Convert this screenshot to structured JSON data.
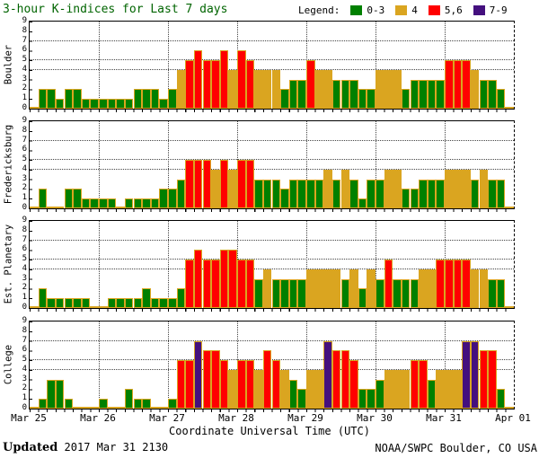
{
  "title": "3-hour K-indices for Last 7 days",
  "title_color": "#006400",
  "legend": {
    "label": "Legend:",
    "items": [
      {
        "label": "0-3",
        "color": "#008000"
      },
      {
        "label": "4",
        "color": "#DAA520"
      },
      {
        "label": "5,6",
        "color": "#FF0000"
      },
      {
        "label": "7-9",
        "color": "#44107E"
      }
    ]
  },
  "footer": {
    "updated_label": "Updated",
    "updated_value": "2017 Mar 31 2130",
    "source": "NOAA/SWPC Boulder, CO USA"
  },
  "chart_data": {
    "type": "bar",
    "title": "3-hour K-indices for Last 7 days",
    "xlabel": "Coordinate Universal Time (UTC)",
    "ylabel_panels": [
      "Boulder",
      "Fredericksburg",
      "Est. Planetary",
      "College"
    ],
    "x_tick_labels": [
      "Mar 25",
      "Mar 26",
      "Mar 27",
      "Mar 28",
      "Mar 29",
      "Mar 30",
      "Mar 31",
      "Apr 01"
    ],
    "bars_per_day": 8,
    "days": 7,
    "ylim": [
      0,
      9
    ],
    "y_ticks": [
      0,
      1,
      2,
      3,
      4,
      5,
      6,
      7,
      8,
      9
    ],
    "grid_y_values": [
      4,
      5,
      7
    ],
    "grid_x": "day-boundaries",
    "legend_position": "top-right",
    "k_color_rule": "0-3 green, 4 yellow, 5-6 red, 7-9 purple",
    "k_colors": {
      "0-3": "#008000",
      "4": "#DAA520",
      "5,6": "#FF0000",
      "7-9": "#44107E"
    },
    "bar_outline": "#DAA520",
    "series": [
      {
        "name": "Boulder",
        "values": [
          0,
          2,
          2,
          1,
          2,
          2,
          1,
          1,
          1,
          1,
          1,
          1,
          2,
          2,
          2,
          1,
          2,
          4,
          5,
          6,
          5,
          5,
          6,
          4,
          6,
          5,
          4,
          4,
          4,
          2,
          3,
          3,
          5,
          4,
          4,
          3,
          3,
          3,
          2,
          2,
          4,
          4,
          4,
          2,
          3,
          3,
          3,
          3,
          5,
          5,
          5,
          4,
          3,
          3,
          2,
          0
        ]
      },
      {
        "name": "Fredericksburg",
        "values": [
          0,
          2,
          0,
          0,
          2,
          2,
          1,
          1,
          1,
          1,
          0,
          1,
          1,
          1,
          1,
          2,
          2,
          3,
          5,
          5,
          5,
          4,
          5,
          4,
          5,
          5,
          3,
          3,
          3,
          2,
          3,
          3,
          3,
          3,
          4,
          3,
          4,
          3,
          1,
          3,
          3,
          4,
          4,
          2,
          2,
          3,
          3,
          3,
          4,
          4,
          4,
          3,
          4,
          3,
          3,
          0
        ]
      },
      {
        "name": "Est. Planetary",
        "values": [
          0,
          2,
          1,
          1,
          1,
          1,
          1,
          0,
          0,
          1,
          1,
          1,
          1,
          2,
          1,
          1,
          1,
          2,
          5,
          6,
          5,
          5,
          6,
          6,
          5,
          5,
          3,
          4,
          3,
          3,
          3,
          3,
          4,
          4,
          4,
          4,
          3,
          4,
          2,
          4,
          3,
          5,
          3,
          3,
          3,
          4,
          4,
          5,
          5,
          5,
          5,
          4,
          4,
          3,
          3,
          0
        ]
      },
      {
        "name": "College",
        "values": [
          0,
          1,
          3,
          3,
          1,
          0,
          0,
          0,
          1,
          0,
          0,
          2,
          1,
          1,
          0,
          0,
          1,
          5,
          5,
          7,
          6,
          6,
          5,
          4,
          5,
          5,
          4,
          6,
          5,
          4,
          3,
          2,
          4,
          4,
          7,
          6,
          6,
          5,
          2,
          2,
          3,
          4,
          4,
          4,
          5,
          5,
          3,
          4,
          4,
          4,
          7,
          7,
          6,
          6,
          2,
          0
        ]
      }
    ]
  }
}
